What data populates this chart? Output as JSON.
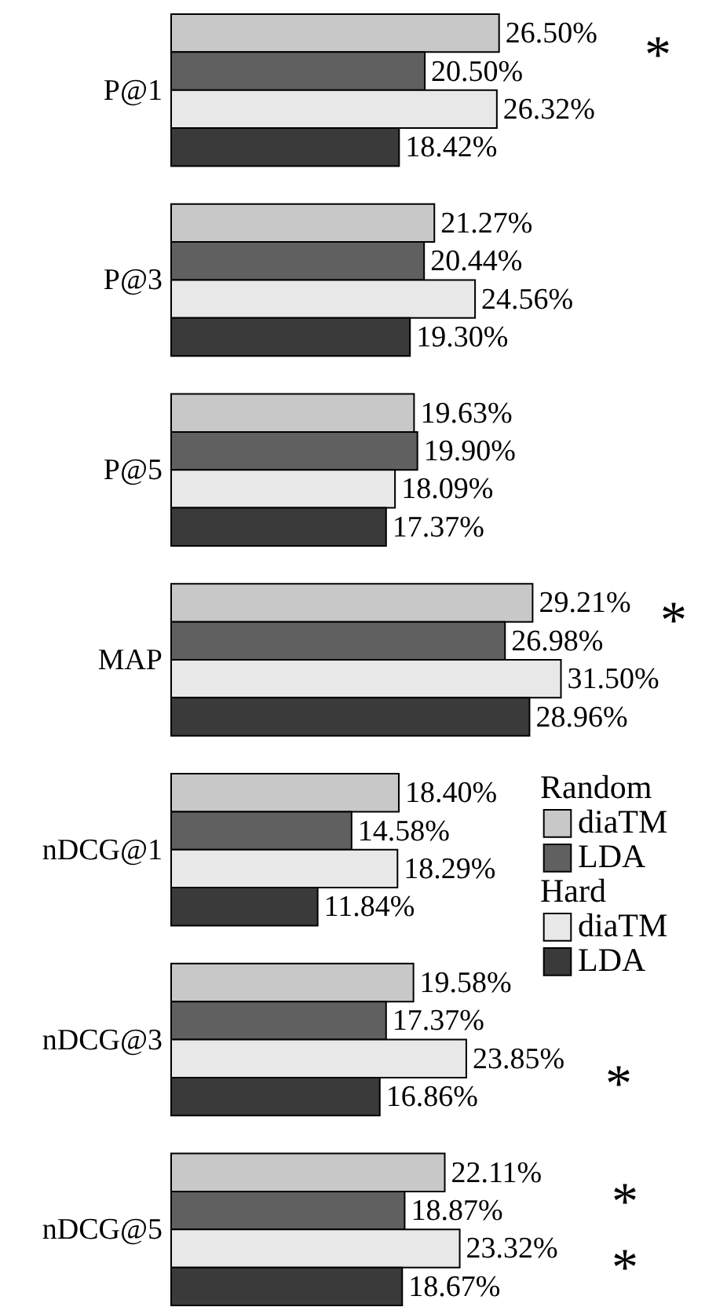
{
  "chart_data": {
    "type": "bar",
    "orientation": "horizontal",
    "categories": [
      "P@1",
      "P@3",
      "P@5",
      "MAP",
      "nDCG@1",
      "nDCG@3",
      "nDCG@5"
    ],
    "series": [
      {
        "name": "diaTM",
        "color": "#c8c8c8",
        "values": [
          26.5,
          21.27,
          19.63,
          29.21,
          18.4,
          19.58,
          22.11
        ],
        "value_labels": [
          "26.50%",
          "21.27%",
          "19.63%",
          "29.21%",
          "18.40%",
          "19.58%",
          "22.11%"
        ]
      },
      {
        "name": "LDA",
        "color": "#606060",
        "values": [
          20.5,
          20.44,
          19.9,
          26.98,
          14.58,
          17.37,
          18.87
        ],
        "value_labels": [
          "20.50%",
          "20.44%",
          "19.90%",
          "26.98%",
          "14.58%",
          "17.37%",
          "18.87%"
        ]
      },
      {
        "name": "diaTM",
        "color": "#e8e8e8",
        "values": [
          26.32,
          24.56,
          18.09,
          31.5,
          18.29,
          23.85,
          23.32
        ],
        "value_labels": [
          "26.32%",
          "24.56%",
          "18.09%",
          "31.50%",
          "18.29%",
          "23.85%",
          "23.32%"
        ]
      },
      {
        "name": "LDA",
        "color": "#3a3a3a",
        "values": [
          18.42,
          19.3,
          17.37,
          28.96,
          11.84,
          16.86,
          18.67
        ],
        "value_labels": [
          "18.42%",
          "19.30%",
          "17.37%",
          "28.96%",
          "11.84%",
          "16.86%",
          "18.67%"
        ]
      }
    ],
    "xlim": [
      0,
      42
    ],
    "tick_labels": "y",
    "legend": "right",
    "annotations": [
      "Random",
      "Hard",
      "*",
      "*",
      "*",
      "*",
      "*"
    ]
  }
}
